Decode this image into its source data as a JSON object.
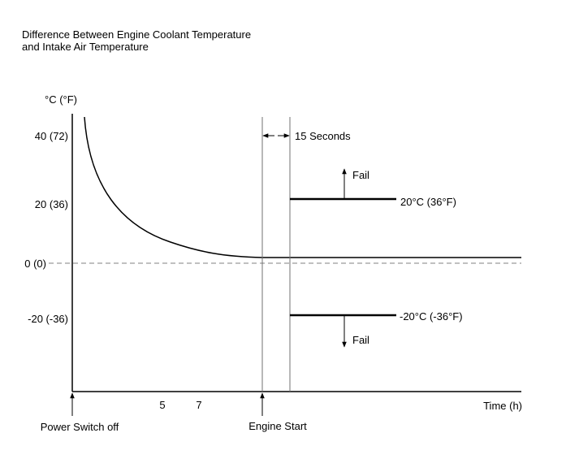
{
  "title_lines": [
    "Difference Between Engine Coolant Temperature",
    "and Intake Air Temperature"
  ],
  "y_unit_label": "°C (°F)",
  "y_ticks": [
    "40 (72)",
    "20 (36)",
    "0 (0)",
    "-20 (-36)"
  ],
  "x_ticks": [
    "5",
    "7"
  ],
  "x_axis_label": "Time (h)",
  "events": {
    "power_off": "Power Switch off",
    "engine_start": "Engine Start"
  },
  "interval_label": "15 Seconds",
  "thresholds": {
    "upper": {
      "label": "20°C (36°F)",
      "fail_label": "Fail"
    },
    "lower": {
      "label": "-20°C (-36°F)",
      "fail_label": "Fail"
    }
  },
  "colors": {
    "curve": "#000000",
    "zero_line": "#808080",
    "event_lines": "#707070",
    "threshold_lines": "#000000"
  }
}
